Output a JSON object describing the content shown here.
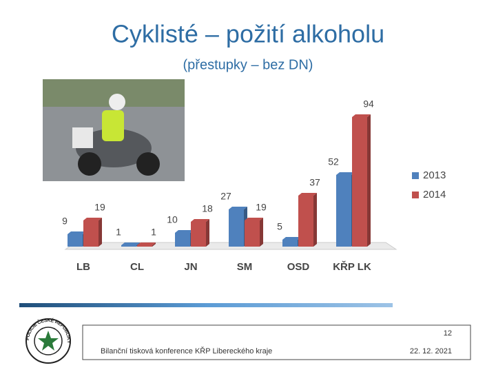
{
  "header": {
    "title": "Cyklisté – požití alkoholu",
    "subtitle": "(přestupky – bez DN)"
  },
  "chart_data": {
    "type": "bar",
    "categories": [
      "LB",
      "CL",
      "JN",
      "SM",
      "OSD",
      "KŘP LK"
    ],
    "series": [
      {
        "name": "2013",
        "color": "#4f81bd",
        "values": [
          9,
          1,
          10,
          27,
          5,
          52
        ]
      },
      {
        "name": "2014",
        "color": "#c0504d",
        "values": [
          19,
          1,
          18,
          19,
          37,
          94
        ]
      }
    ],
    "ylim": [
      0,
      100
    ],
    "legend": "right"
  },
  "logo": {
    "text": "POLICIE ČESKÉ REPUBLIKY"
  },
  "footer": {
    "page": "12",
    "text": "Bilanční tisková konference KŘP Libereckého kraje",
    "date": "22. 12. 2021"
  }
}
